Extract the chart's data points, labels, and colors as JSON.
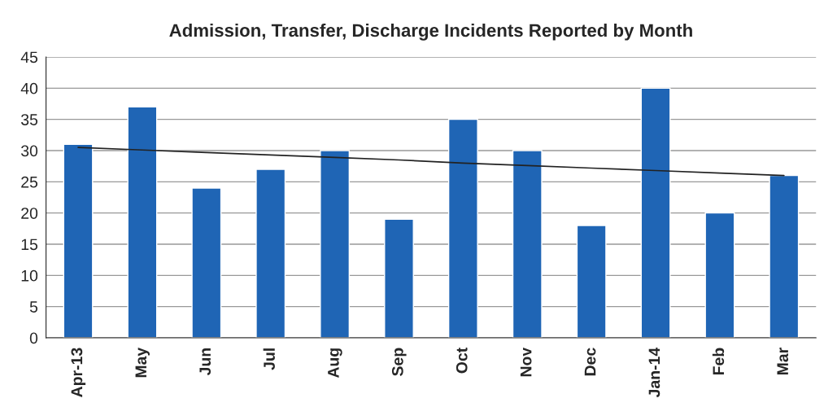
{
  "chart_data": {
    "type": "bar",
    "title": "Admission, Transfer, Discharge Incidents Reported by Month",
    "categories": [
      "Apr-13",
      "May",
      "Jun",
      "Jul",
      "Aug",
      "Sep",
      "Oct",
      "Nov",
      "Dec",
      "Jan-14",
      "Feb",
      "Mar"
    ],
    "series": [
      {
        "color": "#1f65b5",
        "values": [
          31,
          37,
          24,
          27,
          30,
          19,
          35,
          30,
          18,
          40,
          20,
          26
        ]
      },
      {
        "type": "line",
        "color": "#222222",
        "values": [
          30.5,
          30.1,
          29.7,
          29.3,
          28.9,
          28.5,
          28.0,
          27.6,
          27.2,
          26.8,
          26.4,
          26.0
        ]
      }
    ],
    "ylim": [
      0,
      45
    ],
    "yticks": [
      0,
      5,
      10,
      15,
      20,
      25,
      30,
      35,
      40,
      45
    ],
    "grid": "y",
    "legend": false
  }
}
